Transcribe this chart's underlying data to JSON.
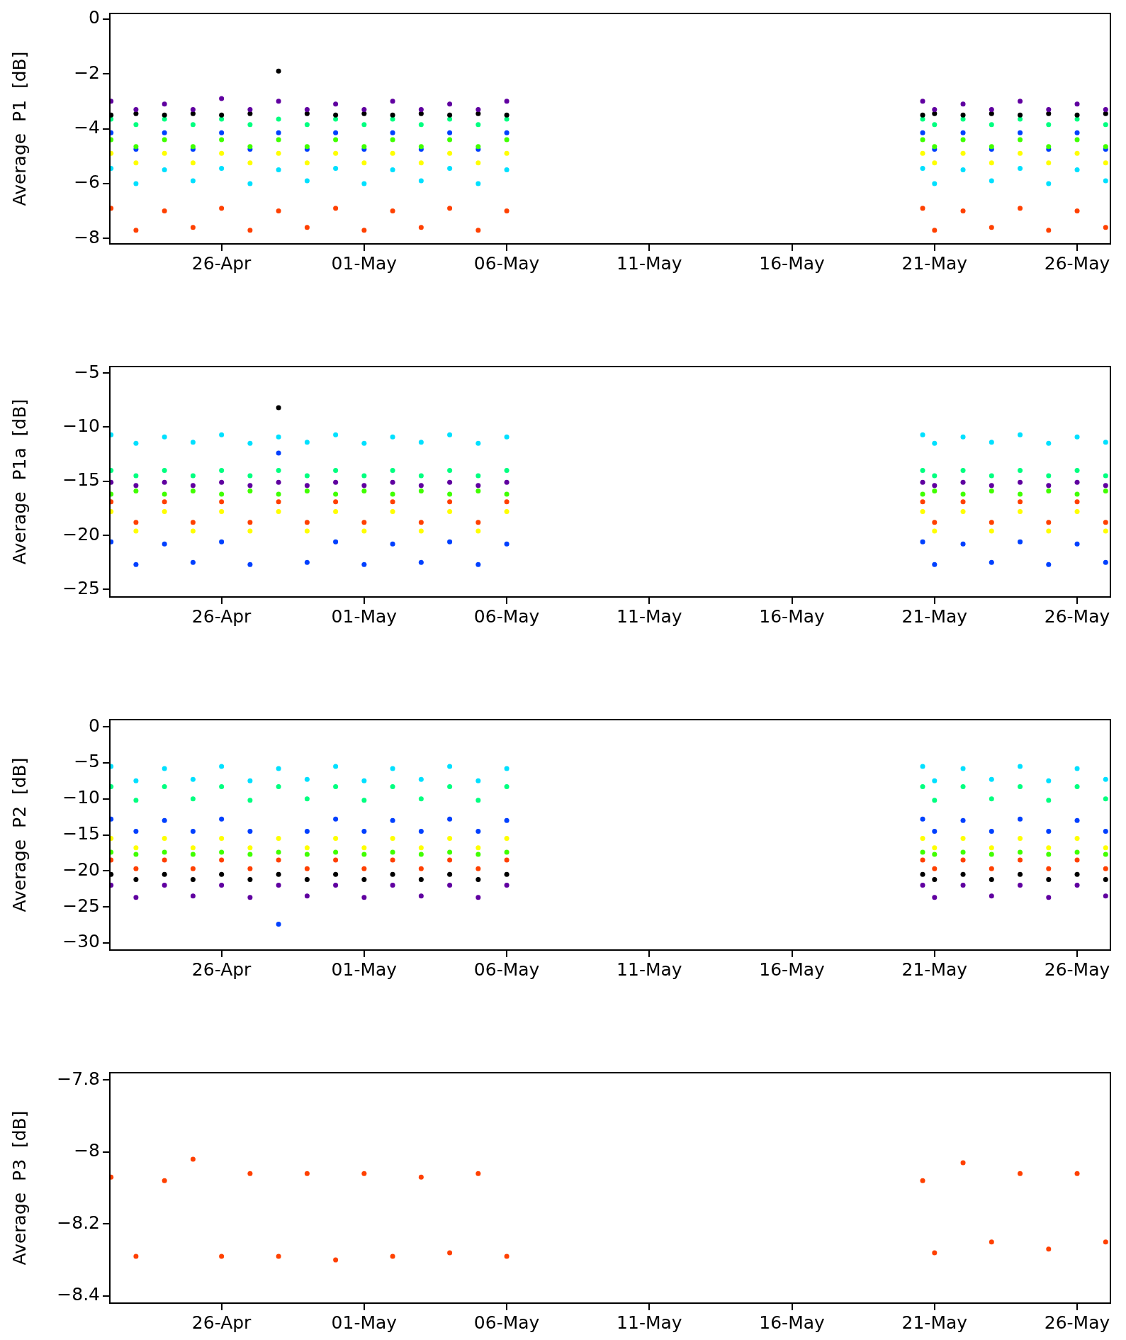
{
  "chart_data": [
    {
      "type": "scatter",
      "ylabel": "Average  P1  [dB]",
      "xlim": [
        "--04-22T02:00",
        "--05-27T04:00"
      ],
      "ylim": [
        -8.2,
        0.2
      ],
      "yticks": [
        -8,
        -6,
        -4,
        -2,
        0
      ],
      "xticks": [
        {
          "value": "--04-26",
          "label": "26-Apr"
        },
        {
          "value": "--05-01",
          "label": "01-May"
        },
        {
          "value": "--05-06",
          "label": "06-May"
        },
        {
          "value": "--05-11",
          "label": "11-May"
        },
        {
          "value": "--05-16",
          "label": "16-May"
        },
        {
          "value": "--05-21",
          "label": "21-May"
        },
        {
          "value": "--05-26",
          "label": "26-May"
        }
      ],
      "x": [
        "--04-22T03:00",
        "--04-23",
        "--04-24",
        "--04-25",
        "--04-26",
        "--04-27",
        "--04-28",
        "--04-29",
        "--04-30",
        "--05-01",
        "--05-02",
        "--05-03",
        "--05-04",
        "--05-05",
        "--05-06",
        "--05-20T14:00",
        "--05-21",
        "--05-22",
        "--05-23",
        "--05-24",
        "--05-25",
        "--05-26",
        "--05-27"
      ],
      "series": [
        {
          "color": "#6000a0",
          "values": [
            -3.0,
            -3.3,
            -3.1,
            -3.3,
            -2.9,
            -3.3,
            -3.0,
            -3.3,
            -3.1,
            -3.3,
            -3.0,
            -3.3,
            -3.1,
            -3.3,
            -3.0,
            -3.0,
            -3.3,
            -3.1,
            -3.3,
            -3.0,
            -3.3,
            -3.1,
            -3.3
          ]
        },
        {
          "color": "#000000",
          "values": [
            -3.5,
            -3.45,
            -3.5,
            -3.45,
            -3.5,
            -3.45,
            -1.9,
            -3.45,
            -3.5,
            -3.45,
            -3.5,
            -3.45,
            -3.5,
            -3.45,
            -3.5,
            -3.5,
            -3.45,
            -3.5,
            -3.45,
            -3.5,
            -3.45,
            -3.5,
            -3.45
          ]
        },
        {
          "color": "#00ff80",
          "values": [
            -3.65,
            -3.85,
            -3.65,
            -3.85,
            -3.65,
            -3.85,
            -3.65,
            -3.85,
            -3.65,
            -3.85,
            -3.65,
            -3.85,
            -3.65,
            -3.85,
            -3.65,
            -3.65,
            -3.85,
            -3.65,
            -3.85,
            -3.65,
            -3.85,
            -3.65,
            -3.85
          ]
        },
        {
          "color": "#40ff00",
          "values": [
            -4.4,
            -4.65,
            -4.4,
            -4.65,
            -4.4,
            -4.65,
            -4.4,
            -4.65,
            -4.4,
            -4.65,
            -4.4,
            -4.65,
            -4.4,
            -4.65,
            -4.4,
            -4.4,
            -4.65,
            -4.4,
            -4.65,
            -4.4,
            -4.65,
            -4.4,
            -4.65
          ]
        },
        {
          "color": "#ffff00",
          "values": [
            -4.9,
            -5.25,
            -4.9,
            -5.25,
            -4.9,
            -5.25,
            -4.9,
            -5.25,
            -4.9,
            -5.25,
            -4.9,
            -5.25,
            -4.9,
            -5.25,
            -4.9,
            -4.9,
            -5.25,
            -4.9,
            -5.25,
            -4.9,
            -5.25,
            -4.9,
            -5.25
          ]
        },
        {
          "color": "#0040ff",
          "values": [
            -4.15,
            -4.75,
            -4.15,
            -4.75,
            -4.15,
            -4.75,
            -4.15,
            -4.75,
            -4.15,
            -4.75,
            -4.15,
            -4.75,
            -4.15,
            -4.75,
            -4.15,
            -4.15,
            -4.75,
            -4.15,
            -4.75,
            -4.15,
            -4.75,
            -4.15,
            -4.75
          ]
        },
        {
          "color": "#00e0ff",
          "values": [
            -5.45,
            -6.0,
            -5.5,
            -5.9,
            -5.45,
            -6.0,
            -5.5,
            -5.9,
            -5.45,
            -6.0,
            -5.5,
            -5.9,
            -5.45,
            -6.0,
            -5.5,
            -5.45,
            -6.0,
            -5.5,
            -5.9,
            -5.45,
            -6.0,
            -5.5,
            -5.9
          ]
        },
        {
          "color": "#ff4000",
          "values": [
            -6.9,
            -7.7,
            -7.0,
            -7.6,
            -6.9,
            -7.7,
            -7.0,
            -7.6,
            -6.9,
            -7.7,
            -7.0,
            -7.6,
            -6.9,
            -7.7,
            -7.0,
            -6.9,
            -7.7,
            -7.0,
            -7.6,
            -6.9,
            -7.7,
            -7.0,
            -7.6
          ]
        }
      ]
    },
    {
      "type": "scatter",
      "ylabel": "Average  P1a  [dB]",
      "xlim": [
        "--04-22T02:00",
        "--05-27T04:00"
      ],
      "ylim": [
        -25.7,
        -4.4
      ],
      "yticks": [
        -25,
        -20,
        -15,
        -10,
        -5
      ],
      "xticks": [
        {
          "value": "--04-26",
          "label": "26-Apr"
        },
        {
          "value": "--05-01",
          "label": "01-May"
        },
        {
          "value": "--05-06",
          "label": "06-May"
        },
        {
          "value": "--05-11",
          "label": "11-May"
        },
        {
          "value": "--05-16",
          "label": "16-May"
        },
        {
          "value": "--05-21",
          "label": "21-May"
        },
        {
          "value": "--05-26",
          "label": "26-May"
        }
      ],
      "x": [
        "--04-22T03:00",
        "--04-23",
        "--04-24",
        "--04-25",
        "--04-26",
        "--04-27",
        "--04-28",
        "--04-29",
        "--04-30",
        "--05-01",
        "--05-02",
        "--05-03",
        "--05-04",
        "--05-05",
        "--05-06",
        "--05-20T14:00",
        "--05-21",
        "--05-22",
        "--05-23",
        "--05-24",
        "--05-25",
        "--05-26",
        "--05-27"
      ],
      "series": [
        {
          "color": "#00e0ff",
          "values": [
            -10.7,
            -11.5,
            -10.9,
            -11.4,
            -10.7,
            -11.5,
            -10.9,
            -11.4,
            -10.7,
            -11.5,
            -10.9,
            -11.4,
            -10.7,
            -11.5,
            -10.9,
            -10.7,
            -11.5,
            -10.9,
            -11.4,
            -10.7,
            -11.5,
            -10.9,
            -11.4
          ]
        },
        {
          "color": "#00ff80",
          "values": [
            -14.0,
            -14.5,
            -14.0,
            -14.5,
            -14.0,
            -14.5,
            -14.0,
            -14.5,
            -14.0,
            -14.5,
            -14.0,
            -14.5,
            -14.0,
            -14.5,
            -14.0,
            -14.0,
            -14.5,
            -14.0,
            -14.5,
            -14.0,
            -14.5,
            -14.0,
            -14.5
          ]
        },
        {
          "color": "#40ff00",
          "values": [
            -16.2,
            -15.9,
            -16.2,
            -15.9,
            -16.2,
            -15.9,
            -16.2,
            -15.9,
            -16.2,
            -15.9,
            -16.2,
            -15.9,
            -16.2,
            -15.9,
            -16.2,
            -16.2,
            -15.9,
            -16.2,
            -15.9,
            -16.2,
            -15.9,
            -16.2,
            -15.9
          ]
        },
        {
          "color": "#6000a0",
          "values": [
            -15.1,
            -15.4,
            -15.1,
            -15.4,
            -15.1,
            -15.4,
            -15.1,
            -15.4,
            -15.1,
            -15.4,
            -15.1,
            -15.4,
            -15.1,
            -15.4,
            -15.1,
            -15.1,
            -15.4,
            -15.1,
            -15.4,
            -15.1,
            -15.4,
            -15.1,
            -15.4
          ]
        },
        {
          "color": "#ffff00",
          "values": [
            -17.8,
            -19.6,
            -17.8,
            -19.6,
            -17.8,
            -19.6,
            -17.8,
            -19.6,
            -17.8,
            -19.6,
            -17.8,
            -19.6,
            -17.8,
            -19.6,
            -17.8,
            -17.8,
            -19.6,
            -17.8,
            -19.6,
            -17.8,
            -19.6,
            -17.8,
            -19.6
          ]
        },
        {
          "color": "#ff4000",
          "values": [
            -16.9,
            -18.8,
            -16.9,
            -18.8,
            -16.9,
            -18.8,
            -16.9,
            -18.8,
            -16.9,
            -18.8,
            -16.9,
            -18.8,
            -16.9,
            -18.8,
            -16.9,
            -16.9,
            -18.8,
            -16.9,
            -18.8,
            -16.9,
            -18.8,
            -16.9,
            -18.8
          ]
        },
        {
          "color": "#0040ff",
          "values": [
            -20.6,
            -22.7,
            -20.8,
            -22.5,
            -20.6,
            -22.7,
            -12.4,
            -22.5,
            -20.6,
            -22.7,
            -20.8,
            -22.5,
            -20.6,
            -22.7,
            -20.8,
            -20.6,
            -22.7,
            -20.8,
            -22.5,
            -20.6,
            -22.7,
            -20.8,
            -22.5
          ]
        },
        {
          "color": "#000000",
          "values": [
            null,
            null,
            null,
            null,
            null,
            null,
            -8.2,
            null,
            null,
            null,
            null,
            null,
            null,
            null,
            null,
            null,
            null,
            null,
            null,
            null,
            null,
            null,
            null
          ]
        }
      ]
    },
    {
      "type": "scatter",
      "ylabel": "Average  P2  [dB]",
      "xlim": [
        "--04-22T02:00",
        "--05-27T04:00"
      ],
      "ylim": [
        -31,
        1
      ],
      "yticks": [
        -30,
        -25,
        -20,
        -15,
        -10,
        -5,
        0
      ],
      "xticks": [
        {
          "value": "--04-26",
          "label": "26-Apr"
        },
        {
          "value": "--05-01",
          "label": "01-May"
        },
        {
          "value": "--05-06",
          "label": "06-May"
        },
        {
          "value": "--05-11",
          "label": "11-May"
        },
        {
          "value": "--05-16",
          "label": "16-May"
        },
        {
          "value": "--05-21",
          "label": "21-May"
        },
        {
          "value": "--05-26",
          "label": "26-May"
        }
      ],
      "x": [
        "--04-22T03:00",
        "--04-23",
        "--04-24",
        "--04-25",
        "--04-26",
        "--04-27",
        "--04-28",
        "--04-29",
        "--04-30",
        "--05-01",
        "--05-02",
        "--05-03",
        "--05-04",
        "--05-05",
        "--05-06",
        "--05-20T14:00",
        "--05-21",
        "--05-22",
        "--05-23",
        "--05-24",
        "--05-25",
        "--05-26",
        "--05-27"
      ],
      "series": [
        {
          "color": "#00e0ff",
          "values": [
            -5.5,
            -7.5,
            -5.8,
            -7.3,
            -5.5,
            -7.5,
            -5.8,
            -7.3,
            -5.5,
            -7.5,
            -5.8,
            -7.3,
            -5.5,
            -7.5,
            -5.8,
            -5.5,
            -7.5,
            -5.8,
            -7.3,
            -5.5,
            -7.5,
            -5.8,
            -7.3
          ]
        },
        {
          "color": "#00ff80",
          "values": [
            -8.3,
            -10.2,
            -8.3,
            -10.0,
            -8.3,
            -10.2,
            -8.3,
            -10.0,
            -8.3,
            -10.2,
            -8.3,
            -10.0,
            -8.3,
            -10.2,
            -8.3,
            -8.3,
            -10.2,
            -8.3,
            -10.0,
            -8.3,
            -10.2,
            -8.3,
            -10.0
          ]
        },
        {
          "color": "#0040ff",
          "values": [
            -12.8,
            -14.5,
            -13.0,
            -14.5,
            -12.8,
            -14.5,
            -27.4,
            -14.5,
            -12.8,
            -14.5,
            -13.0,
            -14.5,
            -12.8,
            -14.5,
            -13.0,
            -12.8,
            -14.5,
            -13.0,
            -14.5,
            -12.8,
            -14.5,
            -13.0,
            -14.5
          ]
        },
        {
          "color": "#ffff00",
          "values": [
            -15.5,
            -16.8,
            -15.5,
            -16.8,
            -15.5,
            -16.8,
            -15.5,
            -16.8,
            -15.5,
            -16.8,
            -15.5,
            -16.8,
            -15.5,
            -16.8,
            -15.5,
            -15.5,
            -16.8,
            -15.5,
            -16.8,
            -15.5,
            -16.8,
            -15.5,
            -16.8
          ]
        },
        {
          "color": "#40ff00",
          "values": [
            -17.4,
            -17.7,
            -17.4,
            -17.7,
            -17.4,
            -17.7,
            -17.4,
            -17.7,
            -17.4,
            -17.7,
            -17.4,
            -17.7,
            -17.4,
            -17.7,
            -17.4,
            -17.4,
            -17.7,
            -17.4,
            -17.7,
            -17.4,
            -17.7,
            -17.4,
            -17.7
          ]
        },
        {
          "color": "#ff4000",
          "values": [
            -18.5,
            -19.7,
            -18.5,
            -19.7,
            -18.5,
            -19.7,
            -18.5,
            -19.7,
            -18.5,
            -19.7,
            -18.5,
            -19.7,
            -18.5,
            -19.7,
            -18.5,
            -18.5,
            -19.7,
            -18.5,
            -19.7,
            -18.5,
            -19.7,
            -18.5,
            -19.7
          ]
        },
        {
          "color": "#000000",
          "values": [
            -20.5,
            -21.2,
            -20.5,
            -21.2,
            -20.5,
            -21.2,
            -20.5,
            -21.2,
            -20.5,
            -21.2,
            -20.5,
            -21.2,
            -20.5,
            -21.2,
            -20.5,
            -20.5,
            -21.2,
            -20.5,
            -21.2,
            -20.5,
            -21.2,
            -20.5,
            -21.2
          ]
        },
        {
          "color": "#6000a0",
          "values": [
            -22.0,
            -23.7,
            -22.0,
            -23.5,
            -22.0,
            -23.7,
            -22.0,
            -23.5,
            -22.0,
            -23.7,
            -22.0,
            -23.5,
            -22.0,
            -23.7,
            -22.0,
            -22.0,
            -23.7,
            -22.0,
            -23.5,
            -22.0,
            -23.7,
            -22.0,
            -23.5
          ]
        }
      ]
    },
    {
      "type": "scatter",
      "ylabel": "Average  P3  [dB]",
      "xlim": [
        "--04-22T02:00",
        "--05-27T04:00"
      ],
      "ylim": [
        -8.42,
        -7.78
      ],
      "yticks": [
        -8.4,
        -8.2,
        -8.0,
        -7.8
      ],
      "xticks": [
        {
          "value": "--04-26",
          "label": "26-Apr"
        },
        {
          "value": "--05-01",
          "label": "01-May"
        },
        {
          "value": "--05-06",
          "label": "06-May"
        },
        {
          "value": "--05-11",
          "label": "11-May"
        },
        {
          "value": "--05-16",
          "label": "16-May"
        },
        {
          "value": "--05-21",
          "label": "21-May"
        },
        {
          "value": "--05-26",
          "label": "26-May"
        }
      ],
      "x": [
        "--04-22T03:00",
        "--04-23",
        "--04-24",
        "--04-25",
        "--04-26",
        "--04-27",
        "--04-28",
        "--04-29",
        "--04-30",
        "--05-01",
        "--05-02",
        "--05-03",
        "--05-04",
        "--05-05",
        "--05-06",
        "--05-20T14:00",
        "--05-21",
        "--05-22",
        "--05-23",
        "--05-24",
        "--05-25",
        "--05-26",
        "--05-27"
      ],
      "series": [
        {
          "color": "#ff4000",
          "values": [
            -8.07,
            -8.29,
            -8.08,
            -8.02,
            -8.29,
            -8.06,
            -8.29,
            -8.06,
            -8.3,
            -8.06,
            -8.29,
            -8.07,
            -8.28,
            -8.06,
            -8.29,
            -8.08,
            -8.28,
            -8.03,
            -8.25,
            -8.06,
            -8.27,
            -8.06,
            -8.25
          ]
        }
      ]
    }
  ]
}
